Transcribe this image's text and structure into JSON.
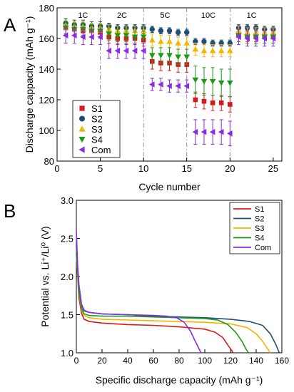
{
  "panels": [
    {
      "panel_letter": "A",
      "regions": [
        {
          "label": "1C",
          "x": 3
        },
        {
          "label": "2C",
          "x": 7.5
        },
        {
          "label": "5C",
          "x": 12.5
        },
        {
          "label": "10C",
          "x": 17.5
        },
        {
          "label": "1C",
          "x": 22.5
        }
      ],
      "region_boundaries": [
        5,
        10,
        15,
        20
      ]
    },
    {
      "panel_letter": "B"
    }
  ],
  "chart_data": [
    {
      "type": "scatter",
      "title": "",
      "xlabel": "Cycle number",
      "ylabel": "Discharge cappacity (mAh g⁻¹)",
      "xlim": [
        0,
        26
      ],
      "ylim": [
        80,
        180
      ],
      "xticks": [
        0,
        5,
        10,
        15,
        20,
        25
      ],
      "yticks": [
        80,
        100,
        120,
        140,
        160,
        180
      ],
      "legend_position": "middle-left",
      "x": [
        1,
        2,
        3,
        4,
        5,
        6,
        7,
        8,
        9,
        10,
        11,
        12,
        13,
        14,
        15,
        16,
        17,
        18,
        19,
        20,
        21,
        22,
        23,
        24,
        25
      ],
      "series": [
        {
          "name": "S1",
          "color": "#d7191c",
          "marker": "square",
          "values": [
            167,
            166,
            165,
            165,
            164,
            161,
            160,
            160,
            160,
            159,
            145,
            144,
            144,
            143,
            143,
            120,
            119,
            118,
            118,
            117,
            162,
            162,
            162,
            161,
            161
          ],
          "error": [
            4,
            4,
            4,
            4,
            4,
            4,
            4,
            4,
            4,
            4,
            5,
            5,
            5,
            5,
            5,
            5,
            5,
            5,
            5,
            5,
            4,
            4,
            4,
            4,
            4
          ]
        },
        {
          "name": "S2",
          "color": "#1f4e79",
          "marker": "circle",
          "values": [
            170,
            169,
            169,
            168,
            168,
            168,
            167,
            167,
            167,
            167,
            166,
            165,
            165,
            164,
            164,
            158,
            158,
            157,
            157,
            157,
            167,
            167,
            167,
            166,
            166
          ],
          "error": [
            3,
            3,
            3,
            3,
            3,
            2,
            2,
            2,
            2,
            2,
            2,
            2,
            2,
            2,
            2,
            2,
            2,
            2,
            2,
            2,
            2,
            2,
            2,
            2,
            2
          ]
        },
        {
          "name": "S3",
          "color": "#f5b400",
          "marker": "triangle-up",
          "values": [
            169,
            168,
            168,
            167,
            167,
            166,
            165,
            165,
            165,
            165,
            159,
            158,
            158,
            157,
            157,
            153,
            152,
            152,
            152,
            152,
            165,
            164,
            164,
            164,
            164
          ],
          "error": [
            3,
            3,
            3,
            3,
            3,
            3,
            3,
            3,
            3,
            3,
            4,
            4,
            4,
            4,
            4,
            4,
            4,
            4,
            4,
            4,
            3,
            3,
            3,
            3,
            3
          ]
        },
        {
          "name": "S4",
          "color": "#1a9a1a",
          "marker": "triangle-down",
          "values": [
            167,
            166,
            166,
            165,
            165,
            163,
            162,
            162,
            161,
            161,
            149,
            149,
            149,
            148,
            148,
            133,
            132,
            132,
            131,
            131,
            162,
            161,
            161,
            161,
            161
          ],
          "error": [
            4,
            4,
            4,
            4,
            4,
            4,
            4,
            4,
            4,
            4,
            5,
            5,
            5,
            5,
            5,
            9,
            9,
            9,
            9,
            9,
            4,
            4,
            4,
            4,
            4
          ]
        },
        {
          "name": "Com",
          "color": "#8a2be2",
          "marker": "triangle-left",
          "values": [
            162,
            162,
            161,
            161,
            161,
            152,
            152,
            152,
            152,
            152,
            130,
            130,
            129,
            129,
            129,
            99,
            99,
            99,
            99,
            98,
            161,
            160,
            160,
            160,
            160
          ],
          "error": [
            5,
            5,
            5,
            5,
            5,
            5,
            5,
            5,
            5,
            5,
            4,
            4,
            4,
            4,
            4,
            8,
            8,
            8,
            8,
            8,
            5,
            5,
            5,
            5,
            5
          ]
        }
      ]
    },
    {
      "type": "line",
      "title": "",
      "xlabel": "Specific discharge capacity (mAh g⁻¹)",
      "ylabel": "Potential vs. Li⁺/Li⁰ (V)",
      "xlim": [
        0,
        160
      ],
      "ylim": [
        1.0,
        3.0
      ],
      "xticks": [
        0,
        20,
        40,
        60,
        80,
        100,
        120,
        140,
        160
      ],
      "yticks": [
        1.0,
        1.5,
        2.0,
        2.5,
        3.0
      ],
      "legend_position": "top-right",
      "series": [
        {
          "name": "S1",
          "color": "#d7191c",
          "x": [
            0,
            1,
            2,
            4,
            6,
            10,
            20,
            40,
            60,
            80,
            100,
            108,
            114,
            118,
            121,
            122
          ],
          "y": [
            2.3,
            2.0,
            1.72,
            1.52,
            1.44,
            1.41,
            1.39,
            1.37,
            1.36,
            1.34,
            1.31,
            1.27,
            1.2,
            1.1,
            1.03,
            1.0
          ]
        },
        {
          "name": "S2",
          "color": "#1f4e79",
          "x": [
            0,
            1,
            2,
            4,
            6,
            10,
            20,
            40,
            60,
            80,
            100,
            120,
            135,
            145,
            151,
            155,
            158
          ],
          "y": [
            2.4,
            2.1,
            1.85,
            1.62,
            1.55,
            1.53,
            1.51,
            1.5,
            1.48,
            1.47,
            1.46,
            1.44,
            1.41,
            1.36,
            1.25,
            1.12,
            1.0
          ]
        },
        {
          "name": "S3",
          "color": "#f5b400",
          "x": [
            0,
            1,
            2,
            4,
            6,
            10,
            20,
            40,
            60,
            80,
            100,
            120,
            133,
            140,
            145,
            149,
            151
          ],
          "y": [
            2.3,
            2.0,
            1.78,
            1.56,
            1.49,
            1.46,
            1.44,
            1.43,
            1.42,
            1.41,
            1.4,
            1.38,
            1.33,
            1.25,
            1.15,
            1.05,
            1.0
          ]
        },
        {
          "name": "S4",
          "color": "#1a9a1a",
          "x": [
            0,
            1,
            2,
            4,
            6,
            10,
            20,
            40,
            60,
            80,
            100,
            110,
            118,
            124,
            129,
            132,
            134
          ],
          "y": [
            2.3,
            2.05,
            1.8,
            1.58,
            1.51,
            1.49,
            1.48,
            1.48,
            1.47,
            1.46,
            1.45,
            1.43,
            1.37,
            1.27,
            1.15,
            1.05,
            1.0
          ]
        },
        {
          "name": "Com",
          "color": "#8a2be2",
          "x": [
            0,
            1,
            2,
            4,
            6,
            10,
            20,
            40,
            60,
            70,
            78,
            84,
            89,
            92,
            95,
            97
          ],
          "y": [
            2.6,
            2.15,
            1.9,
            1.64,
            1.56,
            1.53,
            1.51,
            1.5,
            1.49,
            1.48,
            1.46,
            1.4,
            1.28,
            1.17,
            1.07,
            1.0
          ]
        }
      ]
    }
  ]
}
